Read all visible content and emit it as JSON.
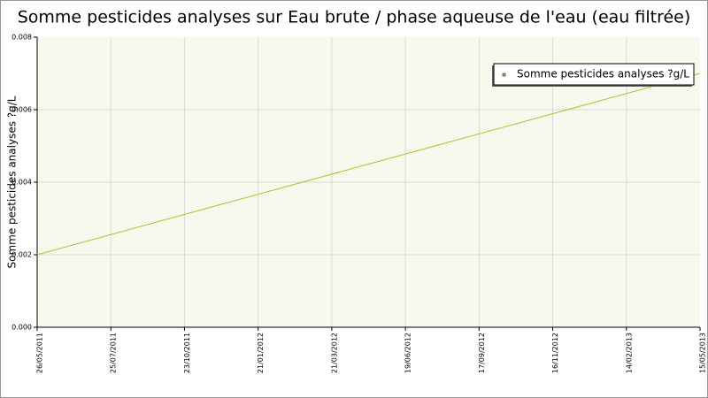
{
  "chart_data": {
    "type": "line",
    "title": "Somme pesticides analyses sur Eau brute / phase aqueuse de l'eau (eau filtrée)",
    "y_label": "Somme pesticides analyses ?g/L",
    "x": [
      "26/05/2011",
      "15/05/2013"
    ],
    "xticks": [
      "26/05/2011",
      "25/07/2011",
      "23/10/2011",
      "21/01/2012",
      "21/03/2012",
      "19/06/2012",
      "17/09/2012",
      "16/11/2012",
      "14/02/2013",
      "15/05/2013"
    ],
    "series": [
      {
        "name": "Somme pesticides analyses ?g/L",
        "color": "#99cc33",
        "values": [
          0.002,
          0.007
        ]
      }
    ],
    "ylim": [
      0,
      0.008
    ],
    "yticks": [
      {
        "value": 0,
        "label": "0.000"
      },
      {
        "value": 0.002,
        "label": "0.002"
      },
      {
        "value": 0.004,
        "label": "0.004"
      },
      {
        "value": 0.006,
        "label": "0.006"
      },
      {
        "value": 0.008,
        "label": "0.008"
      }
    ],
    "grid": true,
    "legend": "top-right"
  }
}
